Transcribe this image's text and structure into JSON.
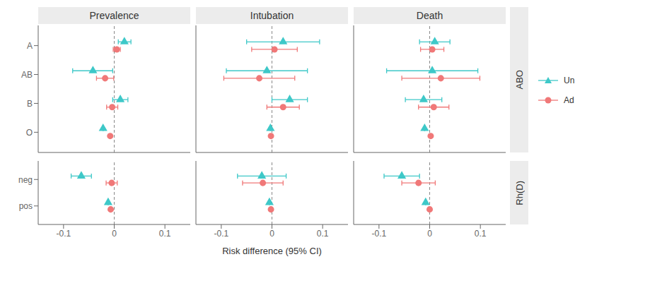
{
  "chart_data": [
    {
      "type": "scatter",
      "title": "Prevalence",
      "categories": [
        "A",
        "AB",
        "B",
        "O"
      ],
      "series": [
        {
          "name": "Un",
          "color": "#3EC8C8",
          "marker": "triangle",
          "values": [
            0.02,
            -0.042,
            0.012,
            -0.022
          ],
          "lo": [
            0.008,
            -0.082,
            -0.003,
            -0.022
          ],
          "hi": [
            0.033,
            -0.003,
            0.027,
            -0.022
          ]
        },
        {
          "name": "Ad",
          "color": "#F07878",
          "marker": "circle",
          "values": [
            0.005,
            -0.018,
            -0.004,
            -0.008
          ],
          "lo": [
            -0.002,
            -0.035,
            -0.015,
            -0.008
          ],
          "hi": [
            0.012,
            -0.001,
            0.007,
            -0.008
          ]
        }
      ],
      "xlim": [
        -0.15,
        0.15
      ],
      "xticks": [
        -0.1,
        0,
        0.1
      ],
      "tick_labels": "y"
    },
    {
      "type": "scatter",
      "title": "Intubation",
      "categories": [
        "A",
        "AB",
        "B",
        "O"
      ],
      "series": [
        {
          "name": "Un",
          "color": "#3EC8C8",
          "marker": "triangle",
          "values": [
            0.022,
            -0.01,
            0.035,
            -0.003
          ],
          "lo": [
            -0.05,
            -0.09,
            0.0,
            -0.003
          ],
          "hi": [
            0.094,
            0.07,
            0.07,
            -0.003
          ]
        },
        {
          "name": "Ad",
          "color": "#F07878",
          "marker": "circle",
          "values": [
            0.005,
            -0.025,
            0.022,
            -0.002
          ],
          "lo": [
            -0.04,
            -0.095,
            -0.01,
            -0.002
          ],
          "hi": [
            0.05,
            0.045,
            0.054,
            -0.002
          ]
        }
      ],
      "xlim": [
        -0.15,
        0.15
      ],
      "xticks": [
        -0.1,
        0,
        0.1
      ],
      "tick_labels": false
    },
    {
      "type": "scatter",
      "title": "Death",
      "group": "ABO",
      "legend": "right",
      "categories": [
        "A",
        "AB",
        "B",
        "O"
      ],
      "series": [
        {
          "name": "Un",
          "color": "#3EC8C8",
          "marker": "triangle",
          "values": [
            0.01,
            0.005,
            -0.012,
            -0.01
          ],
          "lo": [
            -0.02,
            -0.085,
            -0.048,
            -0.01
          ],
          "hi": [
            0.04,
            0.095,
            0.024,
            -0.01
          ]
        },
        {
          "name": "Ad",
          "color": "#F07878",
          "marker": "circle",
          "values": [
            0.005,
            0.022,
            0.008,
            0.002
          ],
          "lo": [
            -0.018,
            -0.055,
            -0.022,
            0.002
          ],
          "hi": [
            0.028,
            0.099,
            0.038,
            0.002
          ]
        }
      ],
      "xlim": [
        -0.15,
        0.15
      ],
      "xticks": [
        -0.1,
        0,
        0.1
      ],
      "tick_labels": false
    },
    {
      "type": "scatter",
      "categories": [
        "neg",
        "pos"
      ],
      "series": [
        {
          "name": "Un",
          "color": "#3EC8C8",
          "marker": "triangle",
          "values": [
            -0.065,
            -0.012
          ],
          "lo": [
            -0.085,
            -0.012
          ],
          "hi": [
            -0.045,
            -0.012
          ]
        },
        {
          "name": "Ad",
          "color": "#F07878",
          "marker": "circle",
          "values": [
            -0.005,
            -0.007
          ],
          "lo": [
            -0.016,
            -0.007
          ],
          "hi": [
            0.006,
            -0.007
          ]
        }
      ],
      "xlim": [
        -0.15,
        0.15
      ],
      "xticks": [
        -0.1,
        0,
        0.1
      ]
    },
    {
      "type": "scatter",
      "xlabel": "Risk difference (95% CI)",
      "categories": [
        "neg",
        "pos"
      ],
      "series": [
        {
          "name": "Un",
          "color": "#3EC8C8",
          "marker": "triangle",
          "values": [
            -0.02,
            -0.005
          ],
          "lo": [
            -0.068,
            -0.005
          ],
          "hi": [
            0.028,
            -0.005
          ]
        },
        {
          "name": "Ad",
          "color": "#F07878",
          "marker": "circle",
          "values": [
            -0.018,
            -0.002
          ],
          "lo": [
            -0.058,
            -0.002
          ],
          "hi": [
            0.022,
            -0.002
          ]
        }
      ],
      "xlim": [
        -0.15,
        0.15
      ],
      "xticks": [
        -0.1,
        0,
        0.1
      ],
      "tick_labels": "x"
    },
    {
      "type": "scatter",
      "group": "Rh(D)",
      "categories": [
        "neg",
        "pos"
      ],
      "series": [
        {
          "name": "Un",
          "color": "#3EC8C8",
          "marker": "triangle",
          "values": [
            -0.055,
            -0.008
          ],
          "lo": [
            -0.09,
            -0.008
          ],
          "hi": [
            -0.02,
            -0.008
          ]
        },
        {
          "name": "Ad",
          "color": "#F07878",
          "marker": "circle",
          "values": [
            -0.022,
            0.0
          ],
          "lo": [
            -0.055,
            0.0
          ],
          "hi": [
            0.011,
            0.0
          ]
        }
      ],
      "xlim": [
        -0.15,
        0.15
      ],
      "xticks": [
        -0.1,
        0,
        0.1
      ],
      "tick_labels": "x"
    }
  ]
}
